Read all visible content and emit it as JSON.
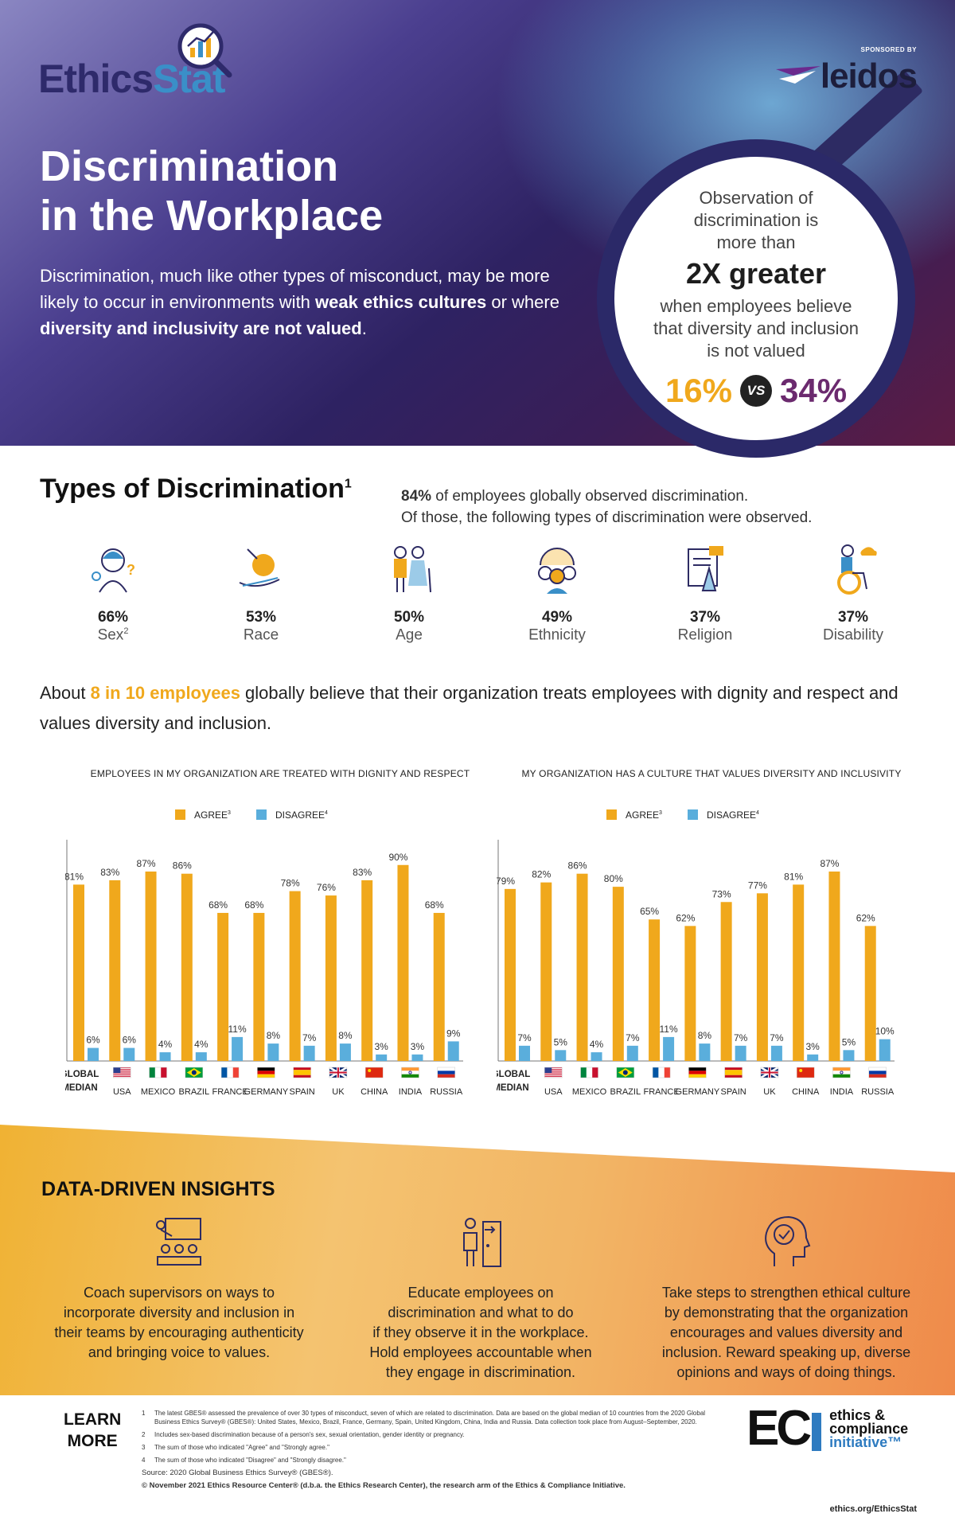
{
  "logo": {
    "part1": "Ethics",
    "part2": "Stat"
  },
  "sponsor": {
    "label": "SPONSORED BY",
    "name": "leidos"
  },
  "hero": {
    "title_line1": "Discrimination",
    "title_line2": "in the Workplace",
    "intro_a": "Discrimination, much like other types of misconduct, may be more likely to occur in environments with ",
    "intro_b": "weak ethics cultures",
    "intro_c": " or where ",
    "intro_d": "diversity and inclusivity are not valued",
    "intro_e": "."
  },
  "callout": {
    "line1": "Observation of",
    "line2": "discrimination is",
    "line3": "more than",
    "big": "2X greater",
    "line4": "when employees believe",
    "line5": "that diversity and inclusion",
    "line6": "is not valued",
    "stat1": "16%",
    "vs": "VS",
    "stat2": "34%"
  },
  "types": {
    "title": "Types of Discrimination",
    "title_sup": "1",
    "intro_bold": "84%",
    "intro_rest": " of employees globally observed discrimination.",
    "intro_line2": "Of those, the following types of discrimination were observed.",
    "items": [
      {
        "pct": "66%",
        "label": "Sex",
        "sup": "2",
        "icon": "person-gender-icon"
      },
      {
        "pct": "53%",
        "label": "Race",
        "sup": "",
        "icon": "hand-globe-icon"
      },
      {
        "pct": "50%",
        "label": "Age",
        "sup": "",
        "icon": "elderly-couple-icon"
      },
      {
        "pct": "49%",
        "label": "Ethnicity",
        "sup": "",
        "icon": "people-globe-icon"
      },
      {
        "pct": "37%",
        "label": "Religion",
        "sup": "",
        "icon": "scroll-prayer-icon"
      },
      {
        "pct": "37%",
        "label": "Disability",
        "sup": "",
        "icon": "wheelchair-icon"
      }
    ]
  },
  "about": {
    "a": "About ",
    "highlight": "8 in 10 employees",
    "b": " globally believe that their organization treats employees with dignity and respect and values diversity and inclusion."
  },
  "chart_data": [
    {
      "type": "bar",
      "title": "EMPLOYEES IN MY ORGANIZATION ARE TREATED WITH DIGNITY AND RESPECT",
      "categories": [
        "GLOBAL MEDIAN",
        "USA",
        "MEXICO",
        "BRAZIL",
        "FRANCE",
        "GERMANY",
        "SPAIN",
        "UK",
        "CHINA",
        "INDIA",
        "RUSSIA"
      ],
      "series": [
        {
          "name": "AGREE",
          "sup": "3",
          "color": "#f0a81c",
          "values": [
            81,
            83,
            87,
            86,
            68,
            68,
            78,
            76,
            83,
            90,
            68
          ]
        },
        {
          "name": "DISAGREE",
          "sup": "4",
          "color": "#5aaedc",
          "values": [
            6,
            6,
            4,
            4,
            11,
            8,
            7,
            8,
            3,
            3,
            9
          ]
        }
      ],
      "ylim": [
        0,
        100
      ],
      "legend": "top-center",
      "grid": false
    },
    {
      "type": "bar",
      "title": "MY ORGANIZATION HAS A CULTURE THAT VALUES DIVERSITY AND INCLUSIVITY",
      "categories": [
        "GLOBAL MEDIAN",
        "USA",
        "MEXICO",
        "BRAZIL",
        "FRANCE",
        "GERMANY",
        "SPAIN",
        "UK",
        "CHINA",
        "INDIA",
        "RUSSIA"
      ],
      "series": [
        {
          "name": "AGREE",
          "sup": "3",
          "color": "#f0a81c",
          "values": [
            79,
            82,
            86,
            80,
            65,
            62,
            73,
            77,
            81,
            87,
            62
          ]
        },
        {
          "name": "DISAGREE",
          "sup": "4",
          "color": "#5aaedc",
          "values": [
            7,
            5,
            4,
            7,
            11,
            8,
            7,
            7,
            3,
            5,
            10
          ]
        }
      ],
      "ylim": [
        0,
        100
      ],
      "legend": "top-center",
      "grid": false
    }
  ],
  "insights": {
    "title": "DATA-DRIVEN INSIGHTS",
    "items": [
      {
        "icon": "presentation-icon",
        "lines": [
          "Coach supervisors on ways to",
          "incorporate diversity and inclusion in",
          "their teams by encouraging authenticity",
          "and bringing voice to values."
        ]
      },
      {
        "icon": "person-door-icon",
        "lines": [
          "Educate employees on",
          "discrimination and what to do",
          "if they observe it in the workplace.",
          "Hold employees accountable when",
          "they engage in discrimination."
        ]
      },
      {
        "icon": "head-check-icon",
        "lines": [
          "Take steps to strengthen ethical culture",
          "by demonstrating that the organization",
          "encourages and values diversity and",
          "inclusion. Reward speaking up, diverse",
          "opinions and ways of doing things."
        ]
      }
    ]
  },
  "footer": {
    "learn_line1": "LEARN",
    "learn_line2": "MORE",
    "notes": [
      {
        "n": "1",
        "text": "The latest GBES® assessed the prevalence of over 30 types of misconduct, seven of which are related to discrimination. Data are based on the global median of 10 countries from the 2020 Global Business Ethics Survey® (GBES®): United States, Mexico, Brazil, France, Germany, Spain, United Kingdom, China, India and Russia. Data collection took place from August–September, 2020."
      },
      {
        "n": "2",
        "text": "Includes sex-based discrimination because of a person's sex, sexual orientation, gender identity or pregnancy."
      },
      {
        "n": "3",
        "text": "The sum of those who indicated \"Agree\" and \"Strongly agree.\""
      },
      {
        "n": "4",
        "text": "The sum of those who indicated \"Disagree\" and \"Strongly disagree.\""
      }
    ],
    "source": "Source: 2020 Global Business Ethics Survey® (GBES®).",
    "copyright": "© November 2021 Ethics Resource Center® (d.b.a. the Ethics Research Center), the research arm of the Ethics & Compliance Initiative.",
    "eci_mark": "EC",
    "eci_l1": "ethics &",
    "eci_l2": "compliance",
    "eci_l3": "initiative™",
    "url": "ethics.org/EthicsStat"
  }
}
